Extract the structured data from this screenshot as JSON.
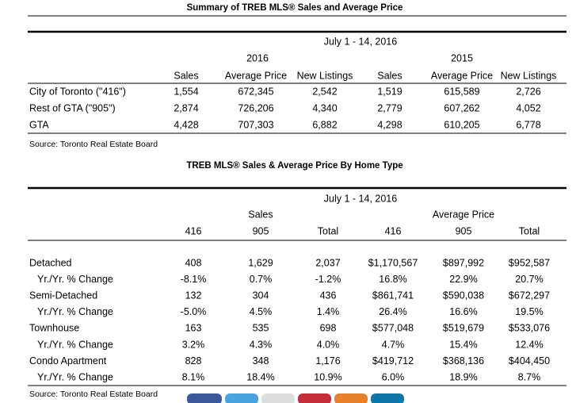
{
  "summary": {
    "title": "Summary of TREB MLS® Sales and Average Price",
    "period": "July 1 - 14, 2016",
    "years": [
      "2016",
      "2015"
    ],
    "columns": [
      "Sales",
      "Average Price",
      "New Listings",
      "Sales",
      "Average Price",
      "New Listings"
    ],
    "rows": [
      {
        "label": "City of Toronto (\"416\")",
        "values": [
          "1,554",
          "672,345",
          "2,542",
          "1,519",
          "615,589",
          "2,726"
        ]
      },
      {
        "label": "Rest of GTA (\"905\")",
        "values": [
          "2,874",
          "726,206",
          "4,340",
          "2,779",
          "607,262",
          "4,052"
        ]
      },
      {
        "label": "GTA",
        "values": [
          "4,428",
          "707,303",
          "6,882",
          "4,298",
          "610,205",
          "6,778"
        ]
      }
    ],
    "source": "Source: Toronto Real Estate Board"
  },
  "by_type": {
    "title": "TREB MLS® Sales & Average Price  By Home Type",
    "period": "July 1 - 14, 2016",
    "groups": [
      "Sales",
      "Average Price"
    ],
    "columns": [
      "416",
      "905",
      "Total",
      "416",
      "905",
      "Total"
    ],
    "rows": [
      {
        "label": "Detached",
        "values": [
          "408",
          "1,629",
          "2,037",
          "$1,170,567",
          "$897,992",
          "$952,587"
        ]
      },
      {
        "label": "Yr./Yr. % Change",
        "values": [
          "-8.1%",
          "0.7%",
          "-1.2%",
          "16.8%",
          "22.9%",
          "20.7%"
        ]
      },
      {
        "label": "Semi-Detached",
        "values": [
          "132",
          "304",
          "436",
          "$861,741",
          "$590,038",
          "$672,297"
        ]
      },
      {
        "label": "Yr./Yr. % Change",
        "values": [
          "-5.0%",
          "4.5%",
          "1.4%",
          "26.4%",
          "16.6%",
          "19.5%"
        ]
      },
      {
        "label": "Townhouse",
        "values": [
          "163",
          "535",
          "698",
          "$577,048",
          "$519,679",
          "$533,076"
        ]
      },
      {
        "label": "Yr./Yr. % Change",
        "values": [
          "3.2%",
          "4.3%",
          "4.0%",
          "4.7%",
          "15.4%",
          "12.4%"
        ]
      },
      {
        "label": "Condo Apartment",
        "values": [
          "828",
          "348",
          "1,176",
          "$419,712",
          "$368,136",
          "$404,450"
        ]
      },
      {
        "label": "Yr./Yr. % Change",
        "values": [
          "8.1%",
          "18.4%",
          "10.9%",
          "6.0%",
          "18.9%",
          "8.7%"
        ]
      }
    ],
    "source": "Source: Toronto Real Estate Board"
  }
}
